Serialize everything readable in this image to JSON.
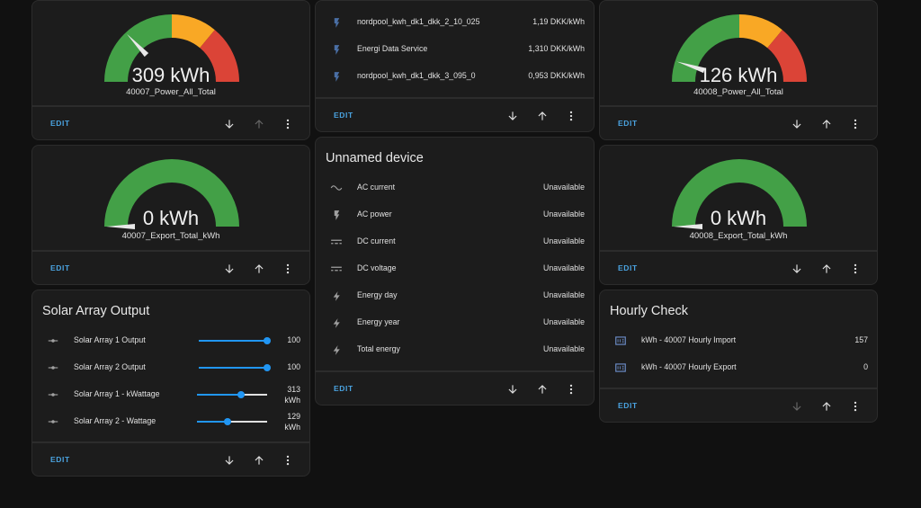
{
  "common": {
    "edit_label": "EDIT"
  },
  "gauges": [
    {
      "value": "309 kWh",
      "name": "40007_Power_All_Total",
      "needle_fraction": 0.26
    },
    {
      "value": "126 kWh",
      "name": "40008_Power_All_Total",
      "needle_fraction": 0.1
    },
    {
      "value": "0 kWh",
      "name": "40007_Export_Total_kWh",
      "needle_fraction": 0.0
    },
    {
      "value": "0 kWh",
      "name": "40008_Export_Total_kWh",
      "needle_fraction": 0.0
    }
  ],
  "gauge_colors": {
    "green": "#43a047",
    "yellow": "#f9a825",
    "red": "#db4437",
    "needle": "#e8e8e8"
  },
  "nordpool": {
    "rows": [
      {
        "label": "nordpool_kwh_dk1_dkk_2_10_025",
        "value": "1,19 DKK/kWh"
      },
      {
        "label": "Energi Data Service",
        "value": "1,310 DKK/kWh"
      },
      {
        "label": "nordpool_kwh_dk1_dkk_3_095_0",
        "value": "0,953 DKK/kWh"
      }
    ]
  },
  "unnamed": {
    "title": "Unnamed device",
    "rows": [
      {
        "label": "AC current",
        "value": "Unavailable",
        "icon": "ac-current-icon"
      },
      {
        "label": "AC power",
        "value": "Unavailable",
        "icon": "flash-icon"
      },
      {
        "label": "DC current",
        "value": "Unavailable",
        "icon": "dc-current-icon"
      },
      {
        "label": "DC voltage",
        "value": "Unavailable",
        "icon": "dc-current-icon"
      },
      {
        "label": "Energy day",
        "value": "Unavailable",
        "icon": "lightning-icon"
      },
      {
        "label": "Energy year",
        "value": "Unavailable",
        "icon": "lightning-icon"
      },
      {
        "label": "Total energy",
        "value": "Unavailable",
        "icon": "lightning-icon"
      }
    ]
  },
  "solar": {
    "title": "Solar Array Output",
    "rows": [
      {
        "label": "Solar Array 1 Output",
        "value": "100",
        "fraction": 1.0
      },
      {
        "label": "Solar Array 2 Output",
        "value": "100",
        "fraction": 1.0
      },
      {
        "label": "Solar Array 1 - kWattage",
        "value_num": "313",
        "value_unit": "kWh",
        "fraction": 0.63
      },
      {
        "label": "Solar Array 2 - Wattage",
        "value_num": "129",
        "value_unit": "kWh",
        "fraction": 0.44
      }
    ]
  },
  "hourly": {
    "title": "Hourly Check",
    "rows": [
      {
        "label": "kWh - 40007 Hourly Import",
        "value": "157"
      },
      {
        "label": "kWh - 40007 Hourly Export",
        "value": "0"
      }
    ]
  }
}
